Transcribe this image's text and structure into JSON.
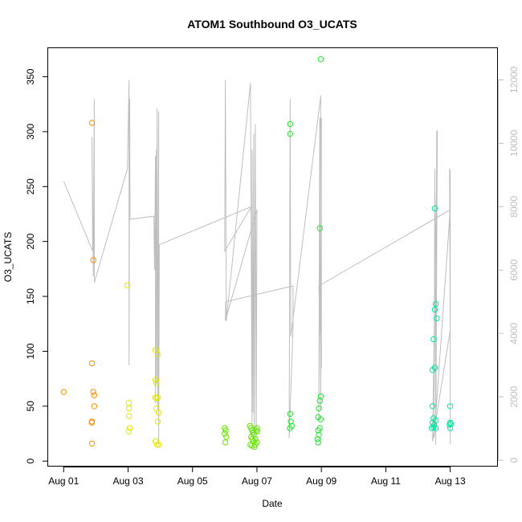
{
  "chart_data": {
    "type": "scatter",
    "title": "ATOM1 Southbound O3_UCATS",
    "xlabel": "Date",
    "ylabel": "O3_UCATS",
    "y2label": "",
    "colors": {
      "axis": "#000000",
      "secondary_axis": "#bebebe",
      "altitude_line": "#bebebe"
    },
    "x_axis": {
      "unit": "days since Aug 01",
      "range": [
        -0.48,
        13.48
      ],
      "ticks": [
        {
          "value": 0,
          "label": "Aug 01"
        },
        {
          "value": 2,
          "label": "Aug 03"
        },
        {
          "value": 4,
          "label": "Aug 05"
        },
        {
          "value": 6,
          "label": "Aug 07"
        },
        {
          "value": 8,
          "label": "Aug 09"
        },
        {
          "value": 10,
          "label": "Aug 11"
        },
        {
          "value": 12,
          "label": "Aug 13"
        }
      ]
    },
    "y_axis": {
      "range": [
        -5,
        376
      ],
      "ticks": [
        0,
        50,
        100,
        150,
        200,
        250,
        300,
        350
      ]
    },
    "y2_axis": {
      "range": [
        -200,
        13000
      ],
      "ticks": [
        0,
        2000,
        4000,
        6000,
        8000,
        10000,
        12000
      ]
    },
    "series": [
      {
        "color": "#FF8C00",
        "points": [
          [
            0,
            63
          ],
          [
            0.88,
            308
          ],
          [
            0.88,
            89
          ],
          [
            0.88,
            36
          ],
          [
            0.87,
            35
          ],
          [
            0.88,
            16
          ],
          [
            0.92,
            183
          ],
          [
            0.92,
            63
          ],
          [
            0.95,
            60
          ],
          [
            0.95,
            50
          ]
        ]
      },
      {
        "color": "#E5E500",
        "points": [
          [
            1.98,
            160
          ],
          [
            2.02,
            53
          ],
          [
            2.03,
            48
          ],
          [
            2.03,
            41
          ],
          [
            2.02,
            27
          ],
          [
            2.05,
            30
          ],
          [
            2.85,
            101
          ],
          [
            2.92,
            97
          ],
          [
            2.85,
            74
          ],
          [
            2.88,
            71
          ],
          [
            2.85,
            58
          ],
          [
            2.88,
            57
          ],
          [
            2.92,
            58
          ],
          [
            2.88,
            48
          ],
          [
            2.95,
            44
          ],
          [
            2.92,
            36
          ],
          [
            2.85,
            18
          ],
          [
            2.9,
            15
          ],
          [
            2.95,
            15
          ]
        ]
      },
      {
        "color": "#66E500",
        "points": [
          [
            5.0,
            30
          ],
          [
            5.03,
            28
          ],
          [
            5.0,
            25
          ],
          [
            5.05,
            22
          ],
          [
            5.02,
            17
          ],
          [
            5.78,
            32
          ],
          [
            5.82,
            30
          ],
          [
            5.85,
            28
          ],
          [
            5.88,
            26
          ],
          [
            5.9,
            24
          ],
          [
            5.82,
            22
          ],
          [
            5.85,
            20
          ],
          [
            5.9,
            18
          ],
          [
            5.8,
            15
          ],
          [
            5.85,
            14
          ],
          [
            5.92,
            13
          ],
          [
            5.95,
            15
          ],
          [
            5.98,
            28
          ],
          [
            6.0,
            30
          ],
          [
            6.02,
            27
          ],
          [
            5.95,
            20
          ],
          [
            6.0,
            17
          ]
        ]
      },
      {
        "color": "#22E530",
        "points": [
          [
            7.03,
            307
          ],
          [
            7.03,
            298
          ],
          [
            7.03,
            43
          ],
          [
            7.05,
            36
          ],
          [
            7.02,
            30
          ],
          [
            7.08,
            32
          ],
          [
            7.98,
            366
          ],
          [
            7.95,
            212
          ],
          [
            7.92,
            48
          ],
          [
            7.95,
            55
          ],
          [
            7.98,
            59
          ],
          [
            7.9,
            40
          ],
          [
            7.98,
            38
          ],
          [
            7.95,
            30
          ],
          [
            7.9,
            28
          ],
          [
            7.92,
            24
          ],
          [
            7.88,
            20
          ],
          [
            7.9,
            17
          ]
        ]
      },
      {
        "color": "#00E5A0",
        "points": [
          [
            11.52,
            230
          ],
          [
            11.55,
            143
          ],
          [
            11.52,
            138
          ],
          [
            11.58,
            130
          ],
          [
            11.48,
            111
          ],
          [
            11.45,
            83
          ],
          [
            11.52,
            85
          ],
          [
            11.45,
            50
          ],
          [
            11.48,
            39
          ],
          [
            11.55,
            37
          ],
          [
            11.45,
            35
          ],
          [
            11.5,
            33
          ],
          [
            11.48,
            31
          ],
          [
            11.55,
            30
          ],
          [
            11.42,
            30
          ],
          [
            12.0,
            50
          ],
          [
            12.0,
            35
          ],
          [
            12.02,
            34
          ],
          [
            11.98,
            33
          ],
          [
            12.0,
            30
          ]
        ]
      }
    ],
    "secondary_line": {
      "color": "#bebebe",
      "axis": "y2",
      "segments": [
        [
          [
            0,
            8800
          ],
          [
            0.9,
            6600
          ],
          [
            0.88,
            10200
          ],
          [
            0.92,
            5800
          ],
          [
            0.95,
            11400
          ],
          [
            0.95,
            5600
          ],
          [
            1.98,
            9200
          ],
          [
            2.03,
            12000
          ],
          [
            2.03,
            3000
          ],
          [
            2.05,
            11400
          ],
          [
            2.06,
            7600
          ]
        ],
        [
          [
            2.06,
            7600
          ],
          [
            2.8,
            7700
          ],
          [
            2.82,
            6000
          ],
          [
            2.85,
            9600
          ],
          [
            2.85,
            1800
          ],
          [
            2.88,
            9800
          ],
          [
            2.88,
            2400
          ],
          [
            2.9,
            11100
          ],
          [
            2.92,
            1600
          ],
          [
            2.95,
            11000
          ],
          [
            2.95,
            500
          ],
          [
            2.97,
            6800
          ]
        ],
        [
          [
            2.97,
            6800
          ],
          [
            5.83,
            8000
          ],
          [
            5.0,
            6600
          ],
          [
            5.02,
            12000
          ],
          [
            5.05,
            4400
          ],
          [
            5.8,
            11900
          ],
          [
            5.85,
            800
          ],
          [
            5.85,
            9800
          ],
          [
            5.88,
            1500
          ],
          [
            5.9,
            10300
          ],
          [
            5.92,
            600
          ],
          [
            5.95,
            10600
          ],
          [
            5.98,
            700
          ],
          [
            6.0,
            7900
          ]
        ],
        [
          [
            6.0,
            7900
          ],
          [
            5.02,
            4400
          ],
          [
            5.03,
            5000
          ],
          [
            7.12,
            5500
          ],
          [
            7.12,
            4200
          ],
          [
            7.0,
            700
          ],
          [
            7.03,
            11400
          ],
          [
            7.05,
            3900
          ],
          [
            7.98,
            11500
          ],
          [
            7.92,
            1300
          ],
          [
            7.95,
            10800
          ],
          [
            7.98,
            1600
          ],
          [
            8.0,
            10800
          ],
          [
            8.0,
            2900
          ],
          [
            7.92,
            5500
          ]
        ],
        [
          [
            7.92,
            5500
          ],
          [
            12.0,
            7900
          ],
          [
            11.5,
            700
          ],
          [
            11.52,
            9200
          ],
          [
            11.55,
            1600
          ],
          [
            11.58,
            10400
          ],
          [
            11.55,
            500
          ],
          [
            11.6,
            10400
          ],
          [
            11.45,
            600
          ],
          [
            12.0,
            4100
          ],
          [
            11.98,
            9200
          ],
          [
            12.0,
            9100
          ],
          [
            12.0,
            500
          ]
        ]
      ]
    }
  }
}
